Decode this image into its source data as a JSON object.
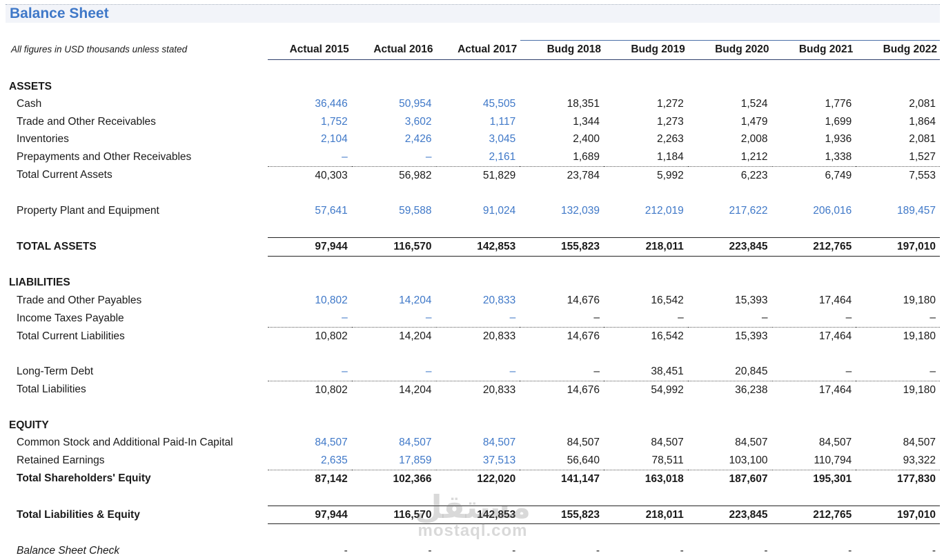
{
  "title": "Balance Sheet",
  "subtitle": "All figures in USD thousands unless stated",
  "columns": [
    "Actual 2015",
    "Actual 2016",
    "Actual 2017",
    "Budg 2018",
    "Budg 2019",
    "Budg 2020",
    "Budg 2021",
    "Budg 2022"
  ],
  "sections": {
    "assets": "ASSETS",
    "liabilities": "LIABILITIES",
    "equity": "EQUITY"
  },
  "rows": {
    "cash": {
      "label": "Cash",
      "values": [
        "36,446",
        "50,954",
        "45,505",
        "18,351",
        "1,272",
        "1,524",
        "1,776",
        "2,081"
      ]
    },
    "receivables": {
      "label": "Trade and Other Receivables",
      "values": [
        "1,752",
        "3,602",
        "1,117",
        "1,344",
        "1,273",
        "1,479",
        "1,699",
        "1,864"
      ]
    },
    "inventories": {
      "label": "Inventories",
      "values": [
        "2,104",
        "2,426",
        "3,045",
        "2,400",
        "2,263",
        "2,008",
        "1,936",
        "2,081"
      ]
    },
    "prepayments": {
      "label": "Prepayments and Other Receivables",
      "values": [
        "–",
        "–",
        "2,161",
        "1,689",
        "1,184",
        "1,212",
        "1,338",
        "1,527"
      ]
    },
    "total_current_assets": {
      "label": "Total Current Assets",
      "values": [
        "40,303",
        "56,982",
        "51,829",
        "23,784",
        "5,992",
        "6,223",
        "6,749",
        "7,553"
      ]
    },
    "ppe": {
      "label": "Property Plant and Equipment",
      "values": [
        "57,641",
        "59,588",
        "91,024",
        "132,039",
        "212,019",
        "217,622",
        "206,016",
        "189,457"
      ]
    },
    "total_assets": {
      "label": "TOTAL ASSETS",
      "values": [
        "97,944",
        "116,570",
        "142,853",
        "155,823",
        "218,011",
        "223,845",
        "212,765",
        "197,010"
      ]
    },
    "payables": {
      "label": "Trade and Other Payables",
      "values": [
        "10,802",
        "14,204",
        "20,833",
        "14,676",
        "16,542",
        "15,393",
        "17,464",
        "19,180"
      ]
    },
    "income_taxes": {
      "label": "Income Taxes Payable",
      "values": [
        "–",
        "–",
        "–",
        "–",
        "–",
        "–",
        "–",
        "–"
      ]
    },
    "total_current_liabilities": {
      "label": "Total Current Liabilities",
      "values": [
        "10,802",
        "14,204",
        "20,833",
        "14,676",
        "16,542",
        "15,393",
        "17,464",
        "19,180"
      ]
    },
    "long_term_debt": {
      "label": "Long-Term Debt",
      "values": [
        "–",
        "–",
        "–",
        "–",
        "38,451",
        "20,845",
        "–",
        "–"
      ]
    },
    "total_liabilities": {
      "label": "Total Liabilities",
      "values": [
        "10,802",
        "14,204",
        "20,833",
        "14,676",
        "54,992",
        "36,238",
        "17,464",
        "19,180"
      ]
    },
    "common_stock": {
      "label": "Common Stock and Additional Paid-In Capital",
      "values": [
        "84,507",
        "84,507",
        "84,507",
        "84,507",
        "84,507",
        "84,507",
        "84,507",
        "84,507"
      ]
    },
    "retained_earnings": {
      "label": "Retained Earnings",
      "values": [
        "2,635",
        "17,859",
        "37,513",
        "56,640",
        "78,511",
        "103,100",
        "110,794",
        "93,322"
      ]
    },
    "total_equity": {
      "label": "Total Shareholders' Equity",
      "values": [
        "87,142",
        "102,366",
        "122,020",
        "141,147",
        "163,018",
        "187,607",
        "195,301",
        "177,830"
      ]
    },
    "total_liab_equity": {
      "label": "Total Liabilities & Equity",
      "values": [
        "97,944",
        "116,570",
        "142,853",
        "155,823",
        "218,011",
        "223,845",
        "212,765",
        "197,010"
      ]
    },
    "balance_check": {
      "label": "Balance Sheet Check",
      "values": [
        "-",
        "-",
        "-",
        "-",
        "-",
        "-",
        "-",
        "-"
      ]
    }
  },
  "watermark": {
    "arabic": "مستقل",
    "latin": "mostaql.com"
  },
  "colors": {
    "title": "#3f78c8",
    "input_values": "#3f78c8",
    "title_band": "#f2f4f9"
  }
}
